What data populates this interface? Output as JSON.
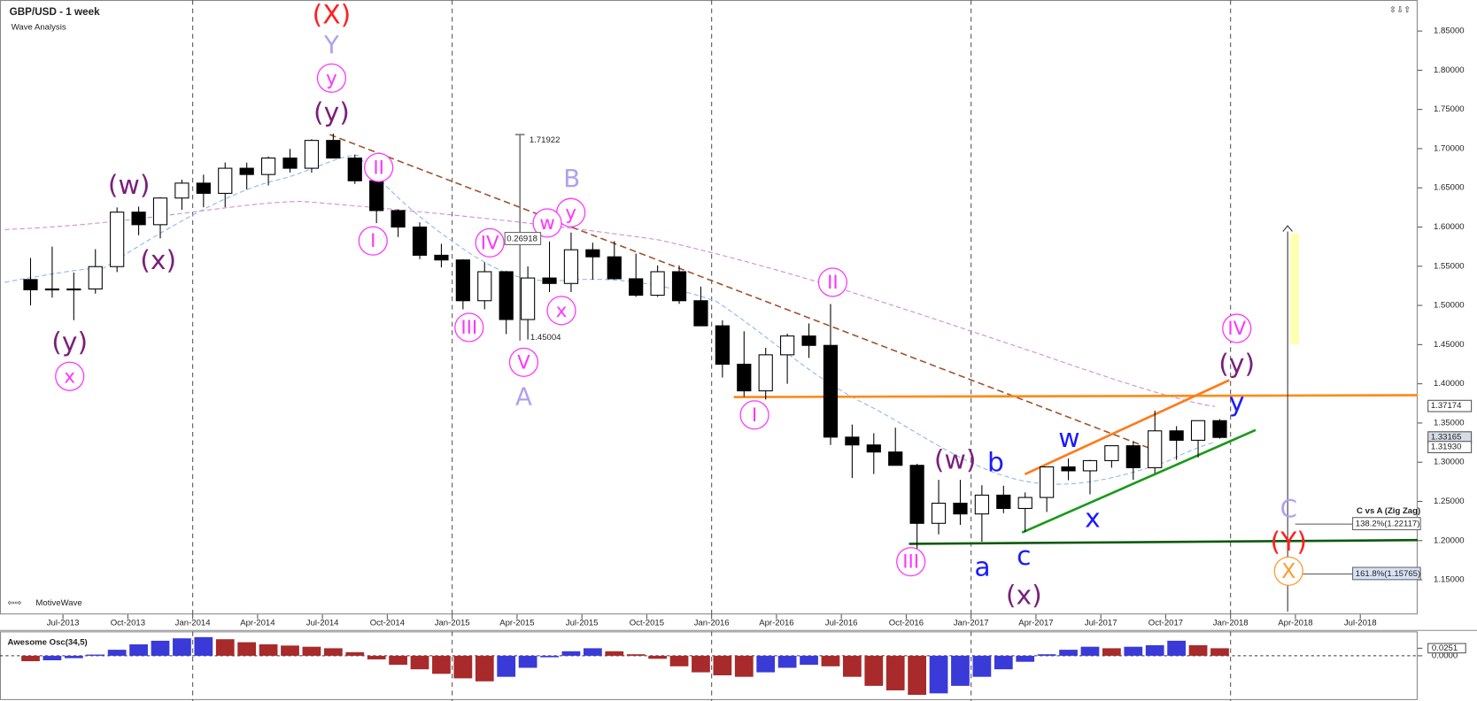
{
  "chart_data": [
    {
      "type": "candlestick",
      "title": "GBP/USD - 1 week",
      "subtitle": "Wave Analysis",
      "footer": "MotiveWave",
      "x": [
        "2013-05",
        "2013-06",
        "2013-07",
        "2013-08",
        "2013-09",
        "2013-10",
        "2013-11",
        "2013-12",
        "2014-01",
        "2014-02",
        "2014-03",
        "2014-04",
        "2014-05",
        "2014-06",
        "2014-07",
        "2014-08",
        "2014-09",
        "2014-10",
        "2014-11",
        "2014-12",
        "2015-01",
        "2015-02",
        "2015-03",
        "2015-04",
        "2015-05",
        "2015-06",
        "2015-07",
        "2015-08",
        "2015-09",
        "2015-10",
        "2015-11",
        "2015-12",
        "2016-01",
        "2016-02",
        "2016-03",
        "2016-04",
        "2016-05",
        "2016-06",
        "2016-07",
        "2016-08",
        "2016-09",
        "2016-10",
        "2016-11",
        "2016-12",
        "2017-01",
        "2017-02",
        "2017-03",
        "2017-04",
        "2017-05",
        "2017-06",
        "2017-07",
        "2017-08",
        "2017-09",
        "2017-10",
        "2017-11",
        "2017-12"
      ],
      "ohlc": [
        [
          1.533,
          1.5605,
          1.4999,
          1.52
        ],
        [
          1.52,
          1.575,
          1.51,
          1.521
        ],
        [
          1.521,
          1.542,
          1.4812,
          1.521
        ],
        [
          1.521,
          1.5717,
          1.515,
          1.5495
        ],
        [
          1.5495,
          1.625,
          1.5425,
          1.619
        ],
        [
          1.619,
          1.626,
          1.5895,
          1.603
        ],
        [
          1.603,
          1.638,
          1.5855,
          1.637
        ],
        [
          1.637,
          1.6604,
          1.622,
          1.656
        ],
        [
          1.656,
          1.6668,
          1.6252,
          1.643
        ],
        [
          1.643,
          1.6823,
          1.6253,
          1.675
        ],
        [
          1.675,
          1.6821,
          1.648,
          1.667
        ],
        [
          1.667,
          1.69,
          1.653,
          1.688
        ],
        [
          1.688,
          1.6996,
          1.6695,
          1.675
        ],
        [
          1.675,
          1.712,
          1.6693,
          1.7105
        ],
        [
          1.7105,
          1.7192,
          1.6877,
          1.688
        ],
        [
          1.688,
          1.6925,
          1.655,
          1.659
        ],
        [
          1.659,
          1.664,
          1.605,
          1.621
        ],
        [
          1.621,
          1.6225,
          1.5873,
          1.6
        ],
        [
          1.6,
          1.606,
          1.559,
          1.564
        ],
        [
          1.564,
          1.5786,
          1.5485,
          1.558
        ],
        [
          1.558,
          1.559,
          1.495,
          1.506
        ],
        [
          1.506,
          1.555,
          1.495,
          1.543
        ],
        [
          1.543,
          1.544,
          1.4634,
          1.482
        ],
        [
          1.482,
          1.5498,
          1.4565,
          1.535
        ],
        [
          1.535,
          1.5815,
          1.517,
          1.528
        ],
        [
          1.528,
          1.593,
          1.517,
          1.571
        ],
        [
          1.571,
          1.58,
          1.533,
          1.562
        ],
        [
          1.562,
          1.582,
          1.533,
          1.534
        ],
        [
          1.534,
          1.566,
          1.511,
          1.513
        ],
        [
          1.513,
          1.551,
          1.511,
          1.543
        ],
        [
          1.543,
          1.551,
          1.502,
          1.506
        ],
        [
          1.506,
          1.524,
          1.474,
          1.474
        ],
        [
          1.474,
          1.481,
          1.408,
          1.425
        ],
        [
          1.425,
          1.467,
          1.3835,
          1.391
        ],
        [
          1.391,
          1.446,
          1.38,
          1.437
        ],
        [
          1.437,
          1.464,
          1.4,
          1.461
        ],
        [
          1.461,
          1.477,
          1.433,
          1.449
        ],
        [
          1.449,
          1.5018,
          1.322,
          1.332
        ],
        [
          1.332,
          1.348,
          1.2798,
          1.322
        ],
        [
          1.322,
          1.337,
          1.285,
          1.313
        ],
        [
          1.313,
          1.344,
          1.296,
          1.296
        ],
        [
          1.296,
          1.298,
          1.184,
          1.222
        ],
        [
          1.222,
          1.2775,
          1.208,
          1.2477
        ],
        [
          1.2477,
          1.2775,
          1.22,
          1.234
        ],
        [
          1.234,
          1.2706,
          1.1986,
          1.258
        ],
        [
          1.258,
          1.27,
          1.235,
          1.241
        ],
        [
          1.241,
          1.2615,
          1.211,
          1.255
        ],
        [
          1.255,
          1.2905,
          1.2365,
          1.294
        ],
        [
          1.294,
          1.3048,
          1.277,
          1.289
        ],
        [
          1.289,
          1.303,
          1.259,
          1.302
        ],
        [
          1.302,
          1.321,
          1.293,
          1.321
        ],
        [
          1.321,
          1.327,
          1.2775,
          1.293
        ],
        [
          1.293,
          1.3657,
          1.286,
          1.34
        ],
        [
          1.34,
          1.346,
          1.303,
          1.328
        ],
        [
          1.328,
          1.347,
          1.306,
          1.353
        ],
        [
          1.353,
          1.355,
          1.33,
          1.3316
        ]
      ],
      "up_color": "#ffffff",
      "down_color": "#000000",
      "xlim": [
        "2013-04",
        "2018-09"
      ],
      "xticks": [
        {
          "value": "2013-07",
          "label": "Jul-2013"
        },
        {
          "value": "2013-10",
          "label": "Oct-2013"
        },
        {
          "value": "2014-01",
          "label": "Jan-2014"
        },
        {
          "value": "2014-04",
          "label": "Apr-2014"
        },
        {
          "value": "2014-07",
          "label": "Jul-2014"
        },
        {
          "value": "2014-10",
          "label": "Oct-2014"
        },
        {
          "value": "2015-01",
          "label": "Jan-2015"
        },
        {
          "value": "2015-04",
          "label": "Apr-2015"
        },
        {
          "value": "2015-07",
          "label": "Jul-2015"
        },
        {
          "value": "2015-10",
          "label": "Oct-2015"
        },
        {
          "value": "2016-01",
          "label": "Jan-2016"
        },
        {
          "value": "2016-04",
          "label": "Apr-2016"
        },
        {
          "value": "2016-07",
          "label": "Jul-2016"
        },
        {
          "value": "2016-10",
          "label": "Oct-2016"
        },
        {
          "value": "2017-01",
          "label": "Jan-2017"
        },
        {
          "value": "2017-04",
          "label": "Apr-2017"
        },
        {
          "value": "2017-07",
          "label": "Jul-2017"
        },
        {
          "value": "2017-10",
          "label": "Oct-2017"
        },
        {
          "value": "2018-01",
          "label": "Jan-2018"
        },
        {
          "value": "2018-04",
          "label": "Apr-2018"
        },
        {
          "value": "2018-07",
          "label": "Jul-2018"
        }
      ],
      "ylim": [
        1.107,
        1.884
      ],
      "yticks": [
        {
          "value": 1.15,
          "label": "1.15000"
        },
        {
          "value": 1.2,
          "label": "1.20000"
        },
        {
          "value": 1.25,
          "label": "1.25000"
        },
        {
          "value": 1.3,
          "label": "1.30000"
        },
        {
          "value": 1.35,
          "label": "1.35000"
        },
        {
          "value": 1.4,
          "label": "1.40000"
        },
        {
          "value": 1.45,
          "label": "1.45000"
        },
        {
          "value": 1.5,
          "label": "1.50000"
        },
        {
          "value": 1.55,
          "label": "1.55000"
        },
        {
          "value": 1.6,
          "label": "1.60000"
        },
        {
          "value": 1.65,
          "label": "1.65000"
        },
        {
          "value": 1.7,
          "label": "1.70000"
        },
        {
          "value": 1.75,
          "label": "1.75000"
        },
        {
          "value": 1.8,
          "label": "1.80000"
        },
        {
          "value": 1.85,
          "label": "1.85000"
        }
      ],
      "price_labels": [
        {
          "value": 1.37174,
          "label": "1.37174"
        },
        {
          "value": 1.33165,
          "label": "1.33165"
        },
        {
          "value": 1.3193,
          "label": "1.31930"
        }
      ],
      "measure_labels": [
        "1.71922",
        "0.26918",
        "1.45004"
      ],
      "fib_title": "C vs A (Zig Zag)",
      "fib_labels": [
        "138.2%(1.22117)",
        "161.8%(1.15765)"
      ],
      "annotations": [
        "(X)",
        "Y",
        "y",
        "(y)",
        "II",
        "I",
        "(w)",
        "(x)",
        "(y)",
        "x",
        "IV",
        "III",
        "V",
        "A",
        "B",
        "y",
        "w",
        "x",
        "II",
        "I",
        "III",
        "(w)",
        "b",
        "a",
        "c",
        "(x)",
        "w",
        "x",
        "IV",
        "(y)",
        "y",
        "C",
        "(Y)",
        "X"
      ]
    },
    {
      "type": "bar",
      "title": "Awesome Osc(34,5)",
      "x": [
        "2013-05",
        "2013-06",
        "2013-07",
        "2013-08",
        "2013-09",
        "2013-10",
        "2013-11",
        "2013-12",
        "2014-01",
        "2014-02",
        "2014-03",
        "2014-04",
        "2014-05",
        "2014-06",
        "2014-07",
        "2014-08",
        "2014-09",
        "2014-10",
        "2014-11",
        "2014-12",
        "2015-01",
        "2015-02",
        "2015-03",
        "2015-04",
        "2015-05",
        "2015-06",
        "2015-07",
        "2015-08",
        "2015-09",
        "2015-10",
        "2015-11",
        "2015-12",
        "2016-01",
        "2016-02",
        "2016-03",
        "2016-04",
        "2016-05",
        "2016-06",
        "2016-07",
        "2016-08",
        "2016-09",
        "2016-10",
        "2016-11",
        "2016-12",
        "2017-01",
        "2017-02",
        "2017-03",
        "2017-04",
        "2017-05",
        "2017-06",
        "2017-07",
        "2017-08",
        "2017-09",
        "2017-10",
        "2017-11",
        "2017-12"
      ],
      "values": [
        -0.018,
        -0.015,
        -0.008,
        0.004,
        0.02,
        0.038,
        0.05,
        0.058,
        0.062,
        0.055,
        0.045,
        0.038,
        0.034,
        0.03,
        0.025,
        0.012,
        -0.012,
        -0.03,
        -0.045,
        -0.06,
        -0.075,
        -0.085,
        -0.07,
        -0.04,
        -0.005,
        0.015,
        0.025,
        0.015,
        0.005,
        -0.01,
        -0.035,
        -0.055,
        -0.065,
        -0.07,
        -0.055,
        -0.04,
        -0.03,
        -0.035,
        -0.07,
        -0.1,
        -0.115,
        -0.13,
        -0.125,
        -0.1,
        -0.07,
        -0.045,
        -0.02,
        0.005,
        0.02,
        0.03,
        0.025,
        0.03,
        0.035,
        0.05,
        0.035,
        0.025
      ],
      "up_color": "#3a3ad8",
      "down_color": "#a82a2a",
      "xlim": [
        "2013-04",
        "2018-09"
      ],
      "ylim": [
        -0.141,
        0.078
      ],
      "yticks": [
        {
          "value": 0,
          "label": "0.0000"
        },
        0.0251
      ]
    }
  ]
}
